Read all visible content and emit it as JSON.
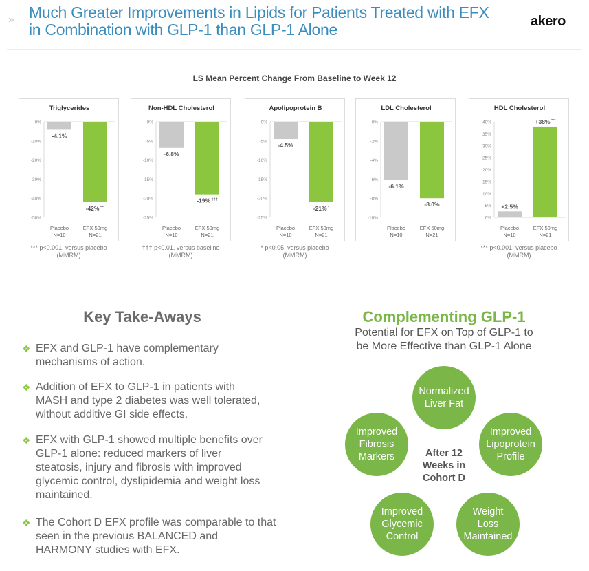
{
  "header": {
    "title_line1": "Much Greater Improvements in Lipids for Patients Treated with EFX",
    "title_line2": "in Combination with GLP-1 than GLP-1 Alone",
    "logo": "akero",
    "chevron": "»"
  },
  "colors": {
    "title": "#3b8dbd",
    "green": "#8cc63f",
    "gray": "#c9c9c9",
    "circle": "#7ab648"
  },
  "chart_data": [
    {
      "type": "bar",
      "super_title": "LS Mean Percent Change From Baseline to Week 12",
      "title": "Triglycerides",
      "categories": [
        "Placebo",
        "EFX 50mg"
      ],
      "n": [
        "N=10",
        "N=21"
      ],
      "values": [
        -4.1,
        -42
      ],
      "labels": [
        "-4.1%",
        "-42%"
      ],
      "marks": [
        "",
        "***"
      ],
      "ylim": [
        -50,
        0
      ],
      "ticks": [
        0,
        -10,
        -20,
        -30,
        -40,
        -50
      ],
      "tick_labels": [
        "0%",
        "-10%",
        "-20%",
        "-30%",
        "-40%",
        "-50%"
      ],
      "footnote": [
        "*** p<0.001, versus placebo",
        "(MMRM)"
      ]
    },
    {
      "type": "bar",
      "title": "Non-HDL Cholesterol",
      "categories": [
        "Placebo",
        "EFX 50mg"
      ],
      "n": [
        "N=10",
        "N=21"
      ],
      "values": [
        -6.8,
        -19
      ],
      "labels": [
        "-6.8%",
        "-19%"
      ],
      "marks": [
        "",
        "†††"
      ],
      "ylim": [
        -25,
        0
      ],
      "ticks": [
        0,
        -5,
        -10,
        -15,
        -20,
        -25
      ],
      "tick_labels": [
        "0%",
        "-5%",
        "-10%",
        "-15%",
        "-20%",
        "-25%"
      ],
      "footnote": [
        "††† p<0.01, versus baseline",
        "(MMRM)"
      ]
    },
    {
      "type": "bar",
      "title": "Apolipoprotein B",
      "categories": [
        "Placebo",
        "EFX 50mg"
      ],
      "n": [
        "N=10",
        "N=21"
      ],
      "values": [
        -4.5,
        -21
      ],
      "labels": [
        "-4.5%",
        "-21%"
      ],
      "marks": [
        "",
        "*"
      ],
      "ylim": [
        -25,
        0
      ],
      "ticks": [
        0,
        -5,
        -10,
        -15,
        -20,
        -25
      ],
      "tick_labels": [
        "0%",
        "-5%",
        "-10%",
        "-15%",
        "-20%",
        "-25%"
      ],
      "footnote": [
        "* p<0.05, versus placebo",
        "(MMRM)"
      ]
    },
    {
      "type": "bar",
      "title": "LDL Cholesterol",
      "categories": [
        "Placebo",
        "EFX 50mg"
      ],
      "n": [
        "N=10",
        "N=21"
      ],
      "values": [
        -6.1,
        -8.0
      ],
      "labels": [
        "-6.1%",
        "-8.0%"
      ],
      "marks": [
        "",
        ""
      ],
      "ylim": [
        -10,
        0
      ],
      "ticks": [
        0,
        -2,
        -4,
        -6,
        -8,
        -10
      ],
      "tick_labels": [
        "0%",
        "-2%",
        "-4%",
        "-6%",
        "-8%",
        "-10%"
      ],
      "footnote": [
        "",
        ""
      ]
    },
    {
      "type": "bar",
      "title": "HDL Cholesterol",
      "categories": [
        "Placebo",
        "EFX 50mg"
      ],
      "n": [
        "N=10",
        "N=21"
      ],
      "values": [
        2.5,
        38
      ],
      "labels": [
        "+2.5%",
        "+38%"
      ],
      "marks": [
        "",
        "***"
      ],
      "ylim": [
        0,
        40
      ],
      "ticks": [
        0,
        5,
        10,
        15,
        20,
        25,
        30,
        35,
        40
      ],
      "tick_labels": [
        "0%",
        "5%",
        "10%",
        "15%",
        "20%",
        "25%",
        "30%",
        "35%",
        "40%"
      ],
      "footnote": [
        "*** p<0.001, versus placebo",
        "(MMRM)"
      ]
    }
  ],
  "takeaways": {
    "heading": "Key Take-Aways",
    "bullet_glyph": "❖",
    "items": [
      "EFX and GLP-1 have complementary mechanisms of action.",
      "Addition of EFX to GLP-1 in patients with MASH and type 2 diabetes was well tolerated, without additive GI side effects.",
      "EFX with GLP-1 showed multiple benefits over GLP-1 alone: reduced markers of liver steatosis, injury and fibrosis with improved glycemic control, dyslipidemia and weight loss maintained.",
      "The Cohort D EFX profile was comparable to that seen in the previous BALANCED and HARMONY studies with EFX."
    ]
  },
  "complementing": {
    "heading": "Complementing GLP-1",
    "subtitle": "Potential for EFX on Top of GLP-1 to be More Effective than GLP-1 Alone",
    "center": "After 12 Weeks in Cohort D",
    "circles": [
      "Normalized Liver Fat",
      "Improved Fibrosis Markers",
      "Improved Lipoprotein Profile",
      "Improved Glycemic Control",
      "Weight Loss Maintained"
    ]
  }
}
